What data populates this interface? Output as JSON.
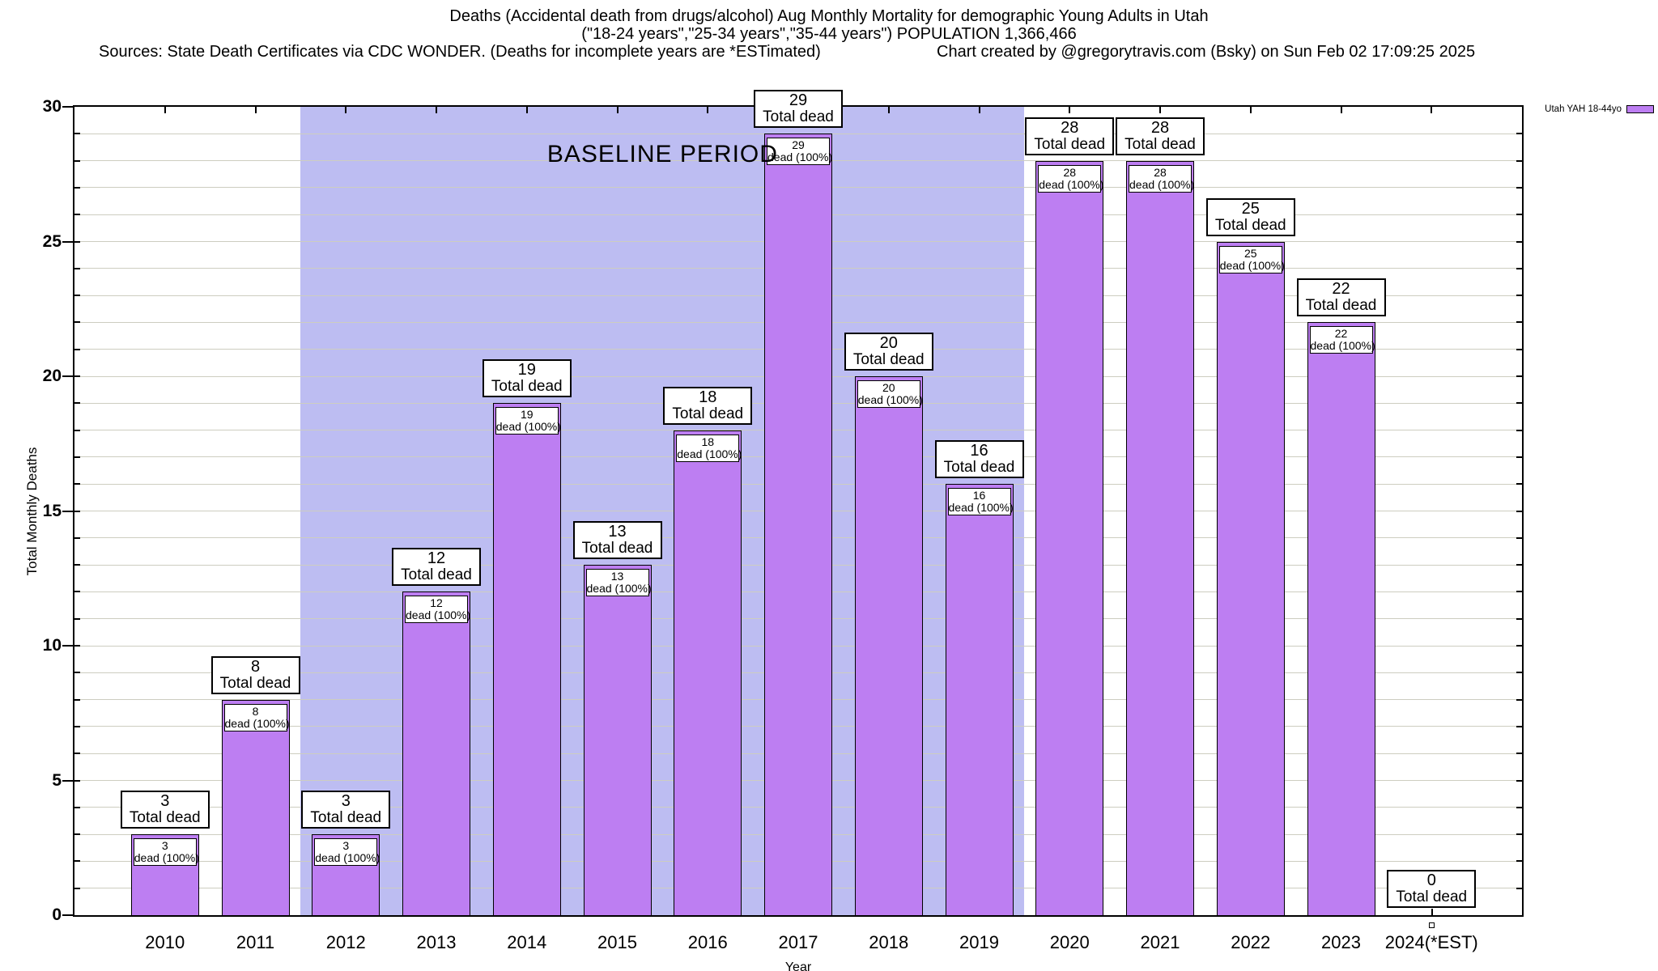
{
  "header": {
    "title_line1": "Deaths (Accidental death from drugs/alcohol) Aug Monthly Mortality for demographic Young Adults in Utah",
    "title_line2": "(\"18-24 years\",\"25-34 years\",\"35-44 years\") POPULATION 1,366,466",
    "sources": "Sources: State Death Certificates via CDC WONDER. (Deaths for incomplete years are *ESTimated)",
    "credit": "Chart created by @gregorytravis.com (Bsky) on Sun Feb 02 17:09:25 2025"
  },
  "legend": {
    "label": "Utah YAH 18-44yo",
    "swatch_color": "#bd7ef2"
  },
  "chart_data": {
    "type": "bar",
    "title": "Deaths (Accidental death from drugs/alcohol) Aug Monthly Mortality for demographic Young Adults in Utah",
    "subtitle": "(\"18-24 years\",\"25-34 years\",\"35-44 years\") POPULATION 1,366,466",
    "xlabel": "Year",
    "ylabel": "Total Monthly Deaths",
    "ylim": [
      0,
      30
    ],
    "yticks": [
      0,
      5,
      10,
      15,
      20,
      25,
      30
    ],
    "minor_grid_interval": 1,
    "grid": true,
    "legend_position": "top-right-outside",
    "series_name": "Utah YAH 18-44yo",
    "categories": [
      "2010",
      "2011",
      "2012",
      "2013",
      "2014",
      "2015",
      "2016",
      "2017",
      "2018",
      "2019",
      "2020",
      "2021",
      "2022",
      "2023",
      "2024(*EST)"
    ],
    "values": [
      3,
      8,
      3,
      12,
      19,
      13,
      18,
      29,
      20,
      16,
      28,
      28,
      25,
      22,
      0
    ],
    "bar_top_label_suffix": "Total dead",
    "bar_inner_label_suffix": "dead (100%)",
    "bar_color": "#bd7ef2",
    "baseline_region": {
      "label": "BASELINE PERIOD",
      "start_category": "2012",
      "end_category": "2019",
      "color": "#bdbdf2"
    }
  }
}
